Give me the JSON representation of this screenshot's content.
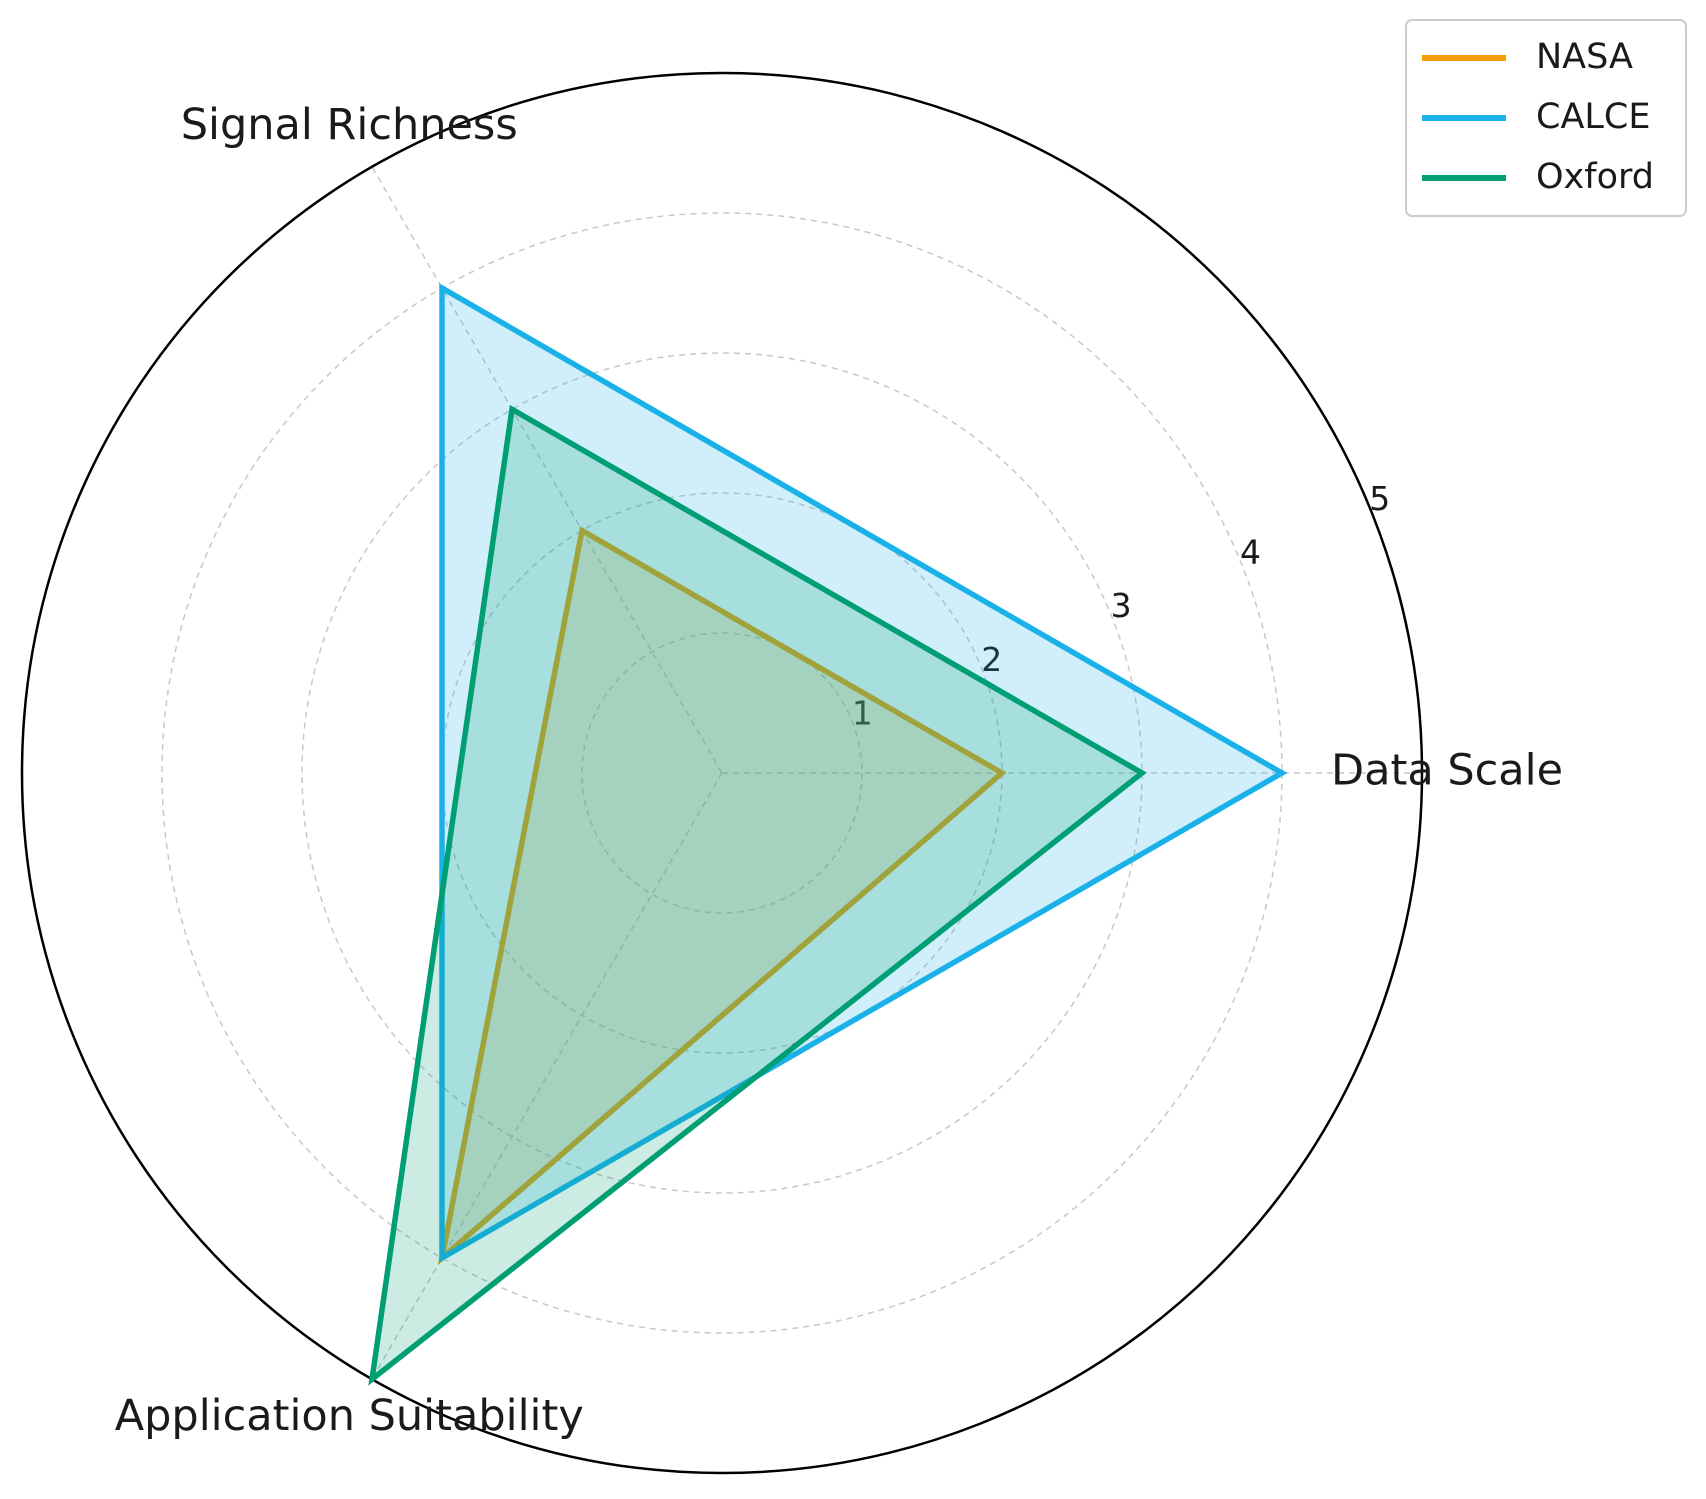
{
  "chart_data": {
    "type": "radar",
    "categories": [
      "Data Scale",
      "Signal Richness",
      "Application Suitability"
    ],
    "series": [
      {
        "name": "NASA",
        "color": "#f5a000",
        "values": [
          2,
          2,
          4
        ]
      },
      {
        "name": "CALCE",
        "color": "#1ab0e8",
        "values": [
          4,
          4,
          4
        ]
      },
      {
        "name": "Oxford",
        "color": "#009e73",
        "values": [
          3,
          3,
          5
        ]
      }
    ],
    "ylim": [
      0,
      5
    ],
    "yticks": [
      1,
      2,
      3,
      4,
      5
    ],
    "grid": true,
    "legend": "upper right"
  }
}
